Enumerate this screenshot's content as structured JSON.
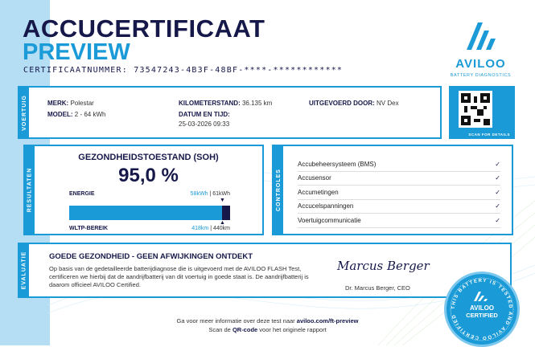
{
  "header": {
    "title": "ACCUCERTIFICAAT",
    "subtitle": "PREVIEW",
    "certificate_label": "CERTIFICAATNUMMER:",
    "certificate_number": "73547243-4B3F-48BF-****-************"
  },
  "logo": {
    "name": "AVILOO",
    "tagline": "BATTERY DIAGNOSTICS"
  },
  "vehicle": {
    "section": "VOERTUIG",
    "brand_label": "MERK:",
    "brand": "Polestar",
    "model_label": "MODEL:",
    "model": "2 - 64 kWh",
    "mileage_label": "KILOMETERSTAND:",
    "mileage": "36.135 km",
    "datetime_label": "DATUM EN TIJD:",
    "datetime": "25-03-2026 09:33",
    "performed_label": "UITGEVOERD DOOR:",
    "performed_by": "NV Dex"
  },
  "qr": {
    "label": "SCAN FOR DETAILS"
  },
  "results": {
    "section": "RESULTATEN",
    "soh_title": "GEZONDHEIDSTOESTAND (SOH)",
    "soh_value": "95,0 %",
    "soh_percent": 95.0,
    "energy_label": "ENERGIE",
    "energy_current": "58kWh",
    "energy_total": "61kWh",
    "range_label": "WLTP-BEREIK",
    "range_current": "418km",
    "range_total": "440km",
    "sep": "|"
  },
  "controls": {
    "section": "CONTROLES",
    "items": [
      {
        "label": "Accubeheersysteem (BMS)",
        "status": "✓"
      },
      {
        "label": "Accusensor",
        "status": "✓"
      },
      {
        "label": "Accumetingen",
        "status": "✓"
      },
      {
        "label": "Accucelspanningen",
        "status": "✓"
      },
      {
        "label": "Voertuigcommunicatie",
        "status": "✓"
      }
    ]
  },
  "evaluation": {
    "section": "EVALUATIE",
    "heading": "GOEDE GEZONDHEID - GEEN AFWIJKINGEN ONTDEKT",
    "body": "Op basis van de gedetailleerde batterijdiagnose die is uitgevoerd met de AVILOO FLASH Test, certificeren we hierbij dat de aandrijfbatterij van dit voertuig in goede staat is. De aandrijfbatterij is daarom officieel AVILOO Certified.",
    "signature": "Marcus Berger",
    "signer": "Dr. Marcus Berger, CEO"
  },
  "footer": {
    "line1_pre": "Ga voor meer informatie over deze test naar ",
    "link": "aviloo.com/ft-preview",
    "line2_pre": "Scan de ",
    "line2_bold": "QR-code",
    "line2_post": " voor het originele rapport"
  },
  "stamp": {
    "ring_text": "THIS BATTERY IS TESTED AND AVILOO CERTIFIED",
    "name": "AVILOO",
    "label": "CERTIFIED"
  },
  "colors": {
    "navy": "#16184a",
    "blue": "#1a9ad6",
    "band": "#b5def5"
  }
}
